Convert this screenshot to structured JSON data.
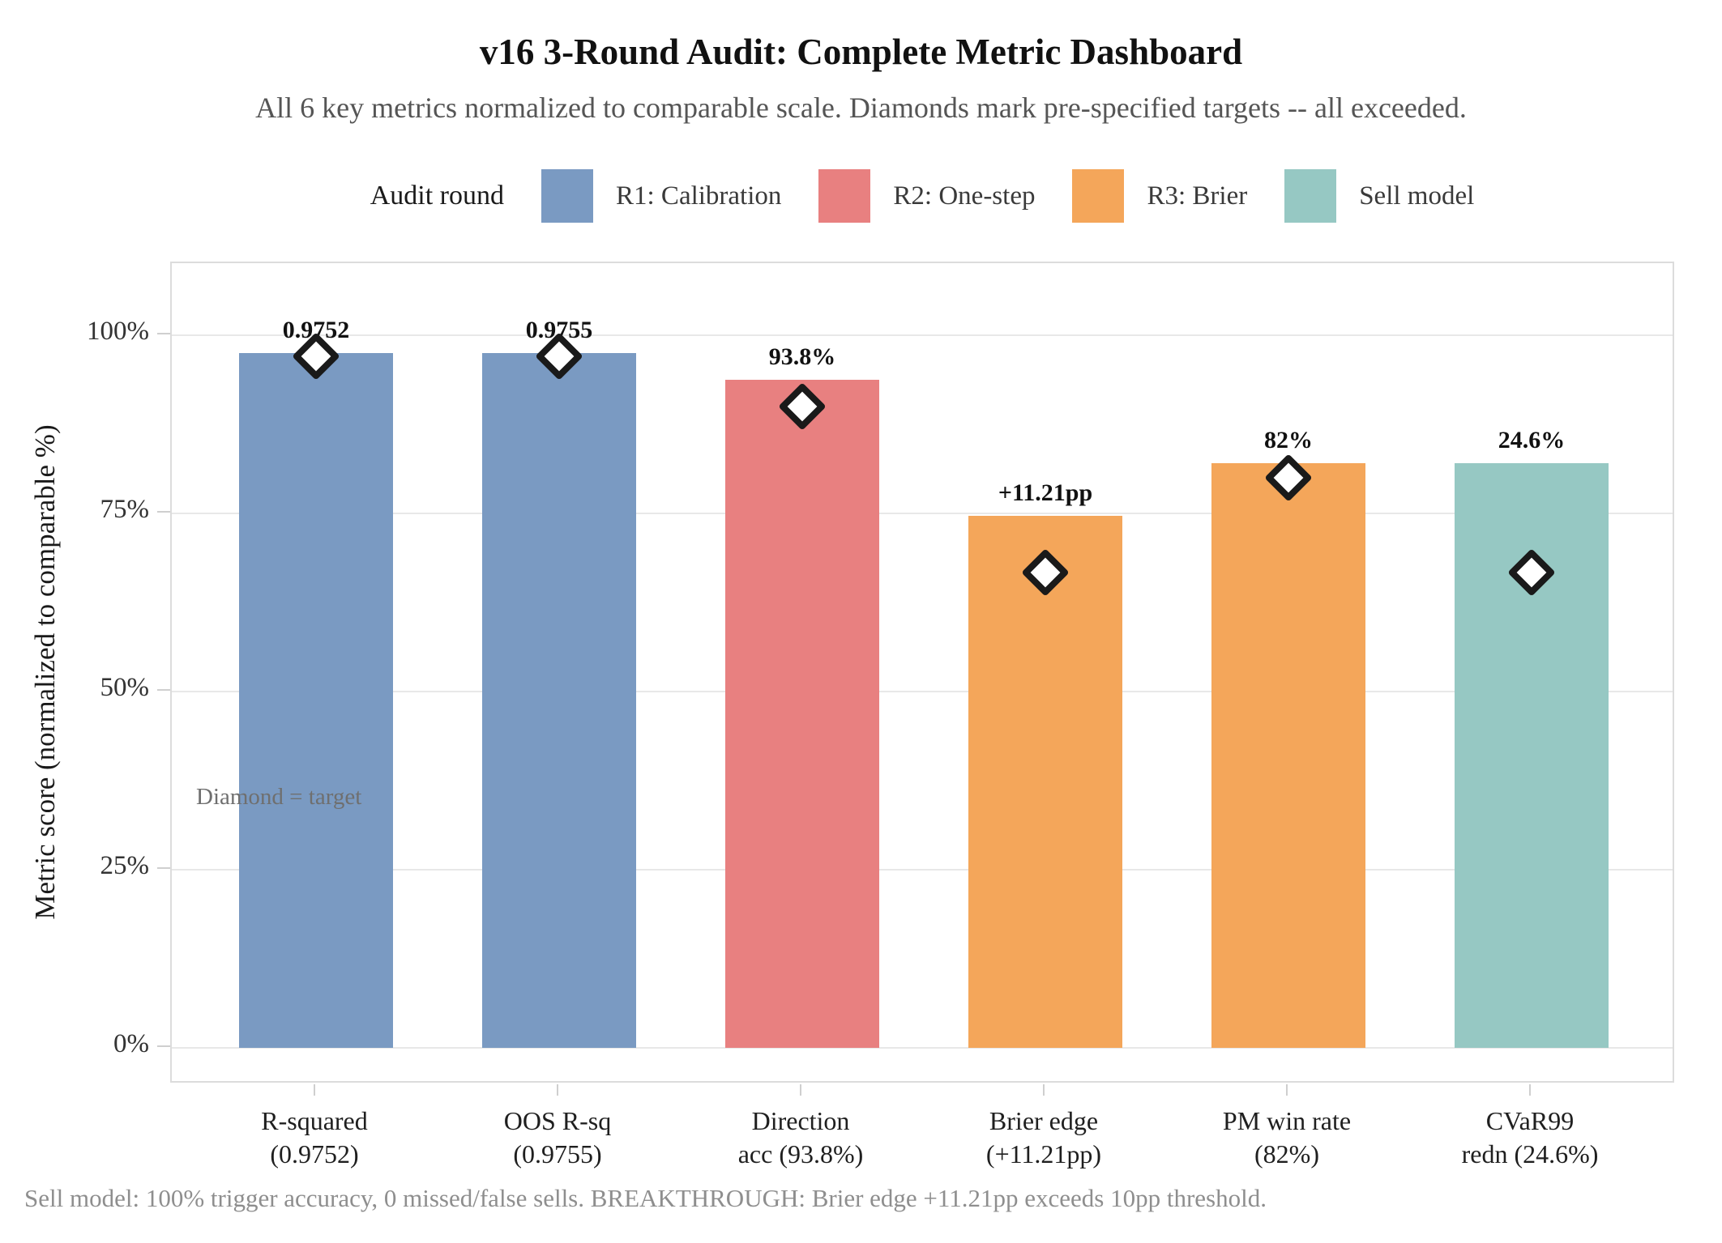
{
  "chart_data": {
    "type": "bar",
    "title": "v16 3-Round Audit: Complete Metric Dashboard",
    "subtitle": "All 6 key metrics normalized to comparable scale. Diamonds mark pre-specified targets -- all exceeded.",
    "legend_title": "Audit round",
    "legend_position": "top",
    "grid": true,
    "ylabel": "Metric score (normalized to comparable %)",
    "ylim": [
      0,
      110
    ],
    "yticks": [
      {
        "value": 0,
        "label": "0%"
      },
      {
        "value": 25,
        "label": "25%"
      },
      {
        "value": 50,
        "label": "50%"
      },
      {
        "value": 75,
        "label": "75%"
      },
      {
        "value": 100,
        "label": "100%"
      }
    ],
    "legend": [
      {
        "label": "R1: Calibration",
        "color": "#7a9ac2"
      },
      {
        "label": "R2: One-step",
        "color": "#e88080"
      },
      {
        "label": "R3: Brier",
        "color": "#f4a65a"
      },
      {
        "label": "Sell model",
        "color": "#96c8c3"
      }
    ],
    "marker_meaning": "Diamond = target",
    "bars": [
      {
        "category_lines": [
          "R-squared",
          "(0.9752)"
        ],
        "value_label": "0.9752",
        "normalized_pct": 97.52,
        "target_pct": 97,
        "round": "R1: Calibration",
        "color": "#7a9ac2"
      },
      {
        "category_lines": [
          "OOS R-sq",
          "(0.9755)"
        ],
        "value_label": "0.9755",
        "normalized_pct": 97.55,
        "target_pct": 97,
        "round": "R1: Calibration",
        "color": "#7a9ac2"
      },
      {
        "category_lines": [
          "Direction",
          "acc (93.8%)"
        ],
        "value_label": "93.8%",
        "normalized_pct": 93.8,
        "target_pct": 90,
        "round": "R2: One-step",
        "color": "#e88080"
      },
      {
        "category_lines": [
          "Brier edge",
          "(+11.21pp)"
        ],
        "value_label": "+11.21pp",
        "normalized_pct": 74.7,
        "target_pct": 66.7,
        "round": "R3: Brier",
        "color": "#f4a65a"
      },
      {
        "category_lines": [
          "PM win rate",
          "(82%)"
        ],
        "value_label": "82%",
        "normalized_pct": 82,
        "target_pct": 80,
        "round": "R3: Brier",
        "color": "#f4a65a"
      },
      {
        "category_lines": [
          "CVaR99",
          "redn (24.6%)"
        ],
        "value_label": "24.6%",
        "normalized_pct": 82,
        "target_pct": 66.7,
        "round": "Sell model",
        "color": "#96c8c3"
      }
    ],
    "footnote": "Sell model: 100% trigger accuracy, 0 missed/false sells. BREAKTHROUGH: Brier edge +11.21pp exceeds 10pp threshold."
  }
}
